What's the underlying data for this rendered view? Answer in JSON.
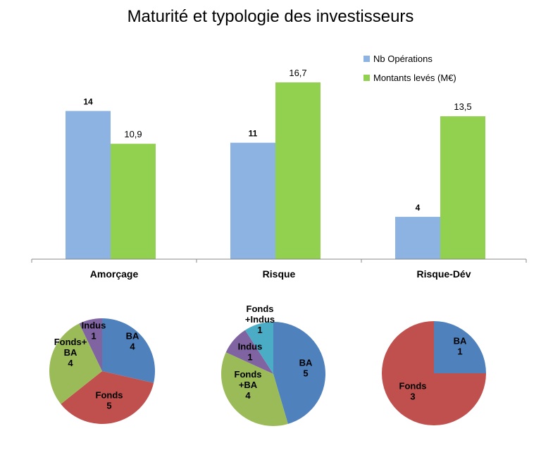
{
  "chart_data": [
    {
      "type": "bar",
      "title": "Maturité et typologie des investisseurs",
      "categories": [
        "Amorçage",
        "Risque",
        "Risque-Dév"
      ],
      "series": [
        {
          "name": "Nb Opérations",
          "values": [
            14,
            11,
            4
          ],
          "labels": [
            "14",
            "11",
            "4"
          ],
          "color": "#8DB3E2"
        },
        {
          "name": "Montants levés (M€)",
          "values": [
            10.9,
            16.7,
            13.5
          ],
          "labels": [
            "10,9",
            "16,7",
            "13,5"
          ],
          "color": "#92D050"
        }
      ],
      "ylim": [
        0,
        16.7
      ],
      "grid": false,
      "legend": "top-right"
    },
    {
      "type": "pie",
      "group": "Amorçage",
      "slices": [
        {
          "name": "BA",
          "value": 4,
          "color": "#4F81BD"
        },
        {
          "name": "Fonds",
          "value": 5,
          "color": "#C0504D"
        },
        {
          "name": "Fonds+ BA",
          "value": 4,
          "color": "#9BBB59"
        },
        {
          "name": "Indus",
          "value": 1,
          "color": "#8064A2"
        }
      ]
    },
    {
      "type": "pie",
      "group": "Risque",
      "slices": [
        {
          "name": "BA",
          "value": 5,
          "color": "#4F81BD"
        },
        {
          "name": "Fonds +BA",
          "value": 4,
          "color": "#9BBB59"
        },
        {
          "name": "Indus",
          "value": 1,
          "color": "#8064A2"
        },
        {
          "name": "Fonds +Indus",
          "value": 1,
          "color": "#4BACC6"
        }
      ]
    },
    {
      "type": "pie",
      "group": "Risque-Dév",
      "slices": [
        {
          "name": "BA",
          "value": 1,
          "color": "#4F81BD"
        },
        {
          "name": "Fonds",
          "value": 3,
          "color": "#C0504D"
        }
      ]
    }
  ]
}
